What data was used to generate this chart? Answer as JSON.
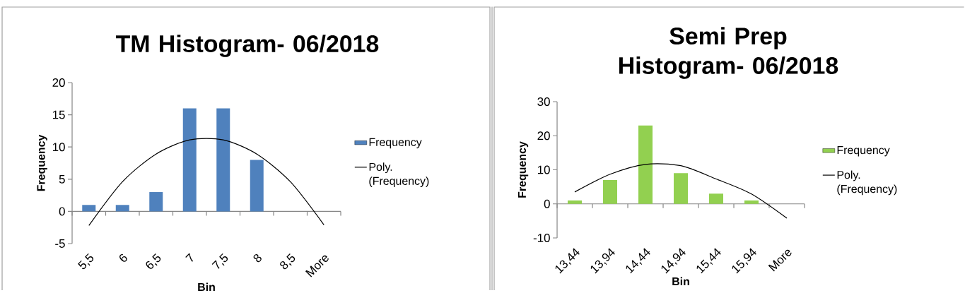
{
  "chart_data": [
    {
      "type": "bar",
      "title": "TM Histogram- 06/2018",
      "xlabel": "Bin",
      "ylabel": "Frequency",
      "categories": [
        "5,5",
        "6",
        "6,5",
        "7",
        "7,5",
        "8",
        "8,5",
        "More"
      ],
      "series": [
        {
          "name": "Frequency",
          "type": "bar",
          "color": "#4f81bd",
          "values": [
            1,
            1,
            3,
            16,
            16,
            8,
            0,
            0
          ]
        },
        {
          "name": "Poly. (Frequency)",
          "type": "line",
          "color": "#000000",
          "values": [
            -2.2,
            4.6,
            8.9,
            11.1,
            11.1,
            8.9,
            4.6,
            -2.1
          ]
        }
      ],
      "ylim": [
        -5,
        20
      ],
      "yticks": [
        -5,
        0,
        5,
        10,
        15,
        20
      ],
      "legend": "right"
    },
    {
      "type": "bar",
      "title": "Semi Prep Histogram- 06/2018",
      "xlabel": "Bin",
      "ylabel": "Frequency",
      "categories": [
        "13,44",
        "13,94",
        "14,44",
        "14,94",
        "15,44",
        "15,94",
        "More"
      ],
      "series": [
        {
          "name": "Frequency",
          "type": "bar",
          "color": "#92d050",
          "values": [
            1,
            7,
            23,
            9,
            3,
            1,
            0
          ]
        },
        {
          "name": "Poly. (Frequency)",
          "type": "line",
          "color": "#000000",
          "values": [
            3.5,
            8.7,
            11.6,
            11.2,
            7.3,
            2.9,
            -4.2
          ]
        }
      ],
      "ylim": [
        -10,
        30
      ],
      "yticks": [
        -10,
        0,
        10,
        20,
        30
      ],
      "legend": "right"
    }
  ]
}
